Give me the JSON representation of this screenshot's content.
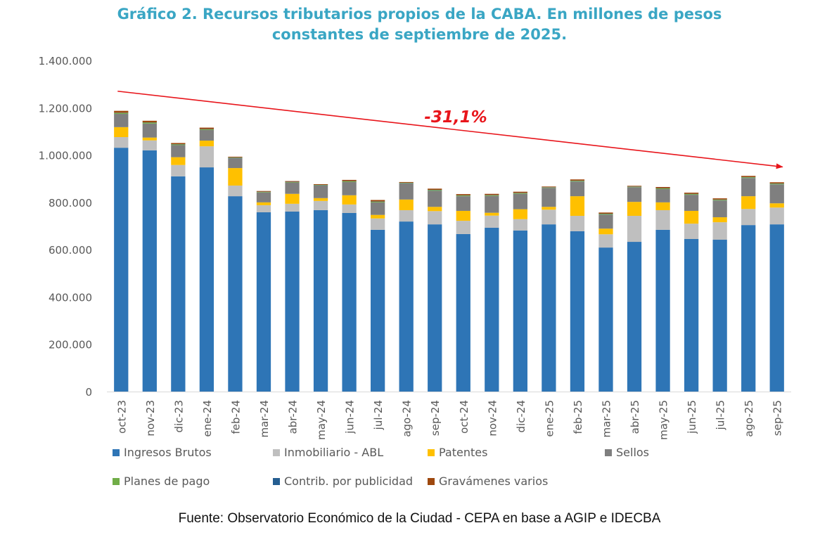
{
  "chart_data": {
    "type": "bar",
    "stacked": true,
    "title": "Gráfico 2. Recursos tributarios propios de la CABA. En millones de pesos constantes de septiembre de 2025.",
    "title_lines": [
      "Gráfico 2. Recursos tributarios propios de la CABA. En millones de pesos",
      "constantes de septiembre de 2025."
    ],
    "xlabel": "",
    "ylabel": "",
    "ylim": [
      0,
      1400000
    ],
    "yticks": [
      0,
      200000,
      400000,
      600000,
      800000,
      1000000,
      1200000,
      1400000
    ],
    "ytick_labels": [
      "0",
      "200.000",
      "400.000",
      "600.000",
      "800.000",
      "1.000.000",
      "1.200.000",
      "1.400.000"
    ],
    "grid": false,
    "legend_position": "bottom",
    "categories": [
      "oct-23",
      "nov-23",
      "dic-23",
      "ene-24",
      "feb-24",
      "mar-24",
      "abr-24",
      "may-24",
      "jun-24",
      "jul-24",
      "ago-24",
      "sep-24",
      "oct-24",
      "nov-24",
      "dic-24",
      "ene-25",
      "feb-25",
      "mar-25",
      "abr-25",
      "may-25",
      "jun-25",
      "jul-25",
      "ago-25",
      "sep-25"
    ],
    "series": [
      {
        "name": "Ingresos Brutos",
        "color": "#2E75B6",
        "values": [
          1031000,
          1020000,
          910000,
          948000,
          826000,
          758000,
          761000,
          767000,
          755000,
          684000,
          719000,
          707000,
          666000,
          693000,
          681000,
          707000,
          678000,
          609000,
          633000,
          684000,
          645000,
          642000,
          704000,
          707000
        ]
      },
      {
        "name": "Inmobiliario - ABL",
        "color": "#BFBFBF",
        "values": [
          45000,
          42000,
          48000,
          89000,
          45000,
          30000,
          33000,
          39000,
          36000,
          48000,
          48000,
          56000,
          56000,
          51000,
          48000,
          62000,
          65000,
          56000,
          110000,
          83000,
          65000,
          74000,
          68000,
          71000
        ]
      },
      {
        "name": "Patentes",
        "color": "#FFC000",
        "values": [
          42000,
          12000,
          33000,
          24000,
          74000,
          12000,
          42000,
          12000,
          39000,
          15000,
          45000,
          18000,
          42000,
          12000,
          42000,
          12000,
          83000,
          24000,
          59000,
          33000,
          54000,
          21000,
          54000,
          18000
        ]
      },
      {
        "name": "Sellos",
        "color": "#7F7F7F",
        "values": [
          56000,
          59000,
          51000,
          45000,
          42000,
          42000,
          48000,
          53000,
          56000,
          53000,
          68000,
          68000,
          62000,
          71000,
          65000,
          80000,
          62000,
          59000,
          62000,
          56000,
          68000,
          71000,
          77000,
          80000
        ]
      },
      {
        "name": "Planes de pago",
        "color": "#70AD47",
        "values": [
          4000,
          4000,
          3000,
          3000,
          2000,
          2000,
          2000,
          2000,
          3000,
          3000,
          2000,
          3000,
          3000,
          3000,
          3000,
          2000,
          3000,
          3000,
          2000,
          3000,
          3000,
          3000,
          3000,
          3000
        ]
      },
      {
        "name": "Contrib. por publicidad",
        "color": "#255E91",
        "values": [
          1000,
          1000,
          1000,
          1000,
          1000,
          1000,
          1000,
          1000,
          1000,
          1000,
          1000,
          1000,
          1000,
          1000,
          1000,
          1000,
          1000,
          1000,
          1000,
          1000,
          1000,
          1000,
          1000,
          1000
        ]
      },
      {
        "name": "Gravámenes varios",
        "color": "#9E480E",
        "values": [
          8000,
          7000,
          5000,
          6000,
          3000,
          3000,
          3000,
          3000,
          5000,
          6000,
          3000,
          5000,
          5000,
          5000,
          5000,
          3000,
          5000,
          5000,
          3000,
          5000,
          5000,
          5000,
          5000,
          5000
        ]
      }
    ],
    "annotations": [
      {
        "type": "arrow",
        "text": "-31,1%",
        "color": "#E8151B",
        "from_category": "oct-23",
        "to_category": "sep-25",
        "from_value": 1270000,
        "to_value": 950000
      }
    ]
  },
  "legend_items": [
    {
      "label": "Ingresos Brutos",
      "color": "#2E75B6"
    },
    {
      "label": "Inmobiliario - ABL",
      "color": "#BFBFBF"
    },
    {
      "label": "Patentes",
      "color": "#FFC000"
    },
    {
      "label": "Sellos",
      "color": "#7F7F7F"
    },
    {
      "label": "Planes de pago",
      "color": "#70AD47"
    },
    {
      "label": "Contrib. por publicidad",
      "color": "#255E91"
    },
    {
      "label": "Gravámenes varios",
      "color": "#9E480E"
    }
  ],
  "annotation_label": "-31,1%",
  "footer": "Fuente: Observatorio Económico de la Ciudad - CEPA en base a AGIP e IDECBA"
}
